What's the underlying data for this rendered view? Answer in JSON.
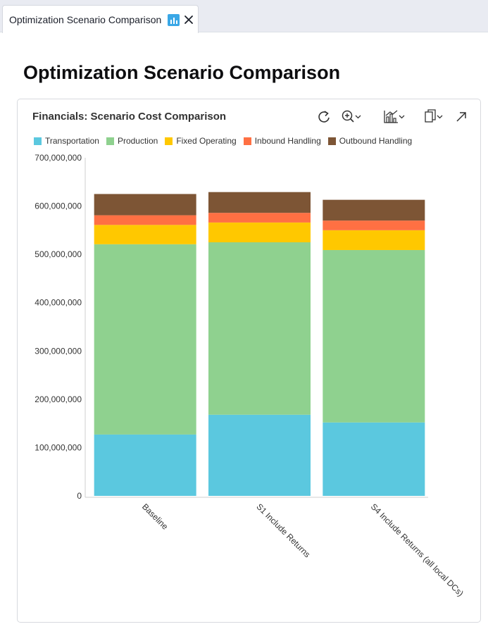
{
  "tab": {
    "label": "Optimization Scenario Comparison",
    "icon": "bar-chart-icon",
    "close_icon": "close-icon"
  },
  "page": {
    "title": "Optimization Scenario Comparison"
  },
  "card": {
    "title": "Financials: Scenario Cost Comparison",
    "toolbar": [
      "refresh-icon",
      "zoom-icon",
      "chart-type-icon",
      "copy-icon",
      "expand-icon"
    ]
  },
  "colors": {
    "Transportation": "#5bc8df",
    "Production": "#8fd18f",
    "Fixed Operating": "#ffc800",
    "Inbound Handling": "#ff7043",
    "Outbound Handling": "#7d5535"
  },
  "chart_data": {
    "type": "bar",
    "stacked": true,
    "title": "Financials: Scenario Cost Comparison",
    "categories": [
      "Baseline",
      "S1 Include Returns",
      "S4 Include Returns (all local DCs)"
    ],
    "series": [
      {
        "name": "Transportation",
        "values": [
          127000000,
          168000000,
          152000000
        ]
      },
      {
        "name": "Production",
        "values": [
          394000000,
          357000000,
          357000000
        ]
      },
      {
        "name": "Fixed Operating",
        "values": [
          40000000,
          41000000,
          41000000
        ]
      },
      {
        "name": "Inbound Handling",
        "values": [
          20000000,
          20000000,
          20000000
        ]
      },
      {
        "name": "Outbound Handling",
        "values": [
          44000000,
          43000000,
          43000000
        ]
      }
    ],
    "ylim": [
      0,
      700000000
    ],
    "yticks": [
      "0",
      "100,000,000",
      "200,000,000",
      "300,000,000",
      "400,000,000",
      "500,000,000",
      "600,000,000",
      "700,000,000"
    ],
    "ytick_values": [
      0,
      100000000,
      200000000,
      300000000,
      400000000,
      500000000,
      600000000,
      700000000
    ],
    "xlabel": "",
    "ylabel": "",
    "legend": "top-left"
  }
}
